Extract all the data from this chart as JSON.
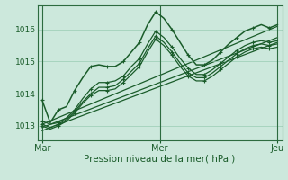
{
  "bg_color": "#cce8dc",
  "grid_color": "#99ccb3",
  "line_color": "#1a5c2a",
  "xlabel": "Pression niveau de la mer( hPa )",
  "xlabel_fontsize": 7.5,
  "yticks": [
    1013,
    1014,
    1015,
    1016
  ],
  "xtick_labels": [
    "Mar",
    "Mer",
    "Jeu"
  ],
  "xtick_positions": [
    0.0,
    0.5,
    1.0
  ],
  "xlim": [
    -0.02,
    1.02
  ],
  "ylim": [
    1012.55,
    1016.75
  ],
  "vline_positions": [
    0.0,
    0.5,
    1.0
  ],
  "series_high": [
    1013.8,
    1013.1,
    1013.5,
    1013.6,
    1014.1,
    1014.5,
    1014.85,
    1014.9,
    1014.85,
    1014.85,
    1015.0,
    1015.3,
    1015.6,
    1016.15,
    1016.55,
    1016.35,
    1016.0,
    1015.6,
    1015.2,
    1014.9,
    1014.9,
    1015.05,
    1015.3,
    1015.55,
    1015.75,
    1015.95,
    1016.05,
    1016.15,
    1016.05,
    1016.15
  ],
  "series_mid1": [
    1013.15,
    1013.05,
    1013.1,
    1013.25,
    1013.5,
    1013.85,
    1014.15,
    1014.35,
    1014.35,
    1014.4,
    1014.55,
    1014.85,
    1015.1,
    1015.55,
    1015.95,
    1015.75,
    1015.45,
    1015.1,
    1014.8,
    1014.6,
    1014.6,
    1014.75,
    1014.95,
    1015.15,
    1015.35,
    1015.5,
    1015.6,
    1015.65,
    1015.6,
    1015.65
  ],
  "series_mid2": [
    1013.05,
    1012.95,
    1013.05,
    1013.2,
    1013.45,
    1013.75,
    1014.0,
    1014.2,
    1014.2,
    1014.25,
    1014.45,
    1014.7,
    1014.95,
    1015.4,
    1015.8,
    1015.6,
    1015.3,
    1014.95,
    1014.65,
    1014.5,
    1014.5,
    1014.65,
    1014.85,
    1015.05,
    1015.25,
    1015.4,
    1015.5,
    1015.55,
    1015.5,
    1015.55
  ],
  "series_low": [
    1013.0,
    1012.9,
    1013.0,
    1013.15,
    1013.4,
    1013.7,
    1013.95,
    1014.1,
    1014.1,
    1014.15,
    1014.35,
    1014.6,
    1014.85,
    1015.3,
    1015.7,
    1015.5,
    1015.2,
    1014.85,
    1014.55,
    1014.4,
    1014.4,
    1014.55,
    1014.75,
    1014.95,
    1015.15,
    1015.3,
    1015.4,
    1015.45,
    1015.4,
    1015.45
  ],
  "trend_lines": [
    {
      "x0": 0.0,
      "y0": 1013.05,
      "x1": 1.0,
      "y1": 1016.1
    },
    {
      "x0": 0.0,
      "y0": 1012.95,
      "x1": 1.0,
      "y1": 1015.75
    },
    {
      "x0": 0.0,
      "y0": 1012.85,
      "x1": 1.0,
      "y1": 1015.6
    }
  ]
}
